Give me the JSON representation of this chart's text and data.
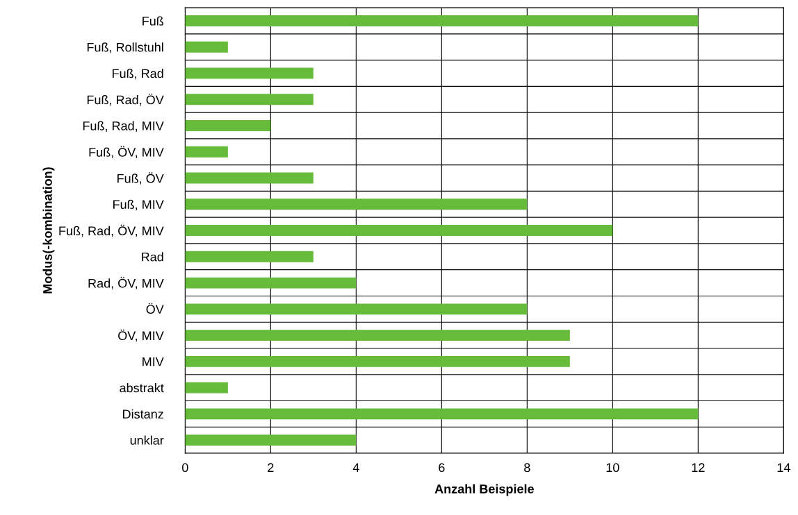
{
  "chart_data": {
    "type": "bar",
    "orientation": "horizontal",
    "xlabel": "Anzahl Beispiele",
    "ylabel": "Modus(-kombination)",
    "categories": [
      "Fuß",
      "Fuß, Rollstuhl",
      "Fuß, Rad",
      "Fuß, Rad, ÖV",
      "Fuß, Rad, MIV",
      "Fuß, ÖV, MIV",
      "Fuß, ÖV",
      "Fuß, MIV",
      "Fuß, Rad, ÖV, MIV",
      "Rad",
      "Rad, ÖV, MIV",
      "ÖV",
      "ÖV, MIV",
      "MIV",
      "abstrakt",
      "Distanz",
      "unklar"
    ],
    "values": [
      12,
      1,
      3,
      3,
      2,
      1,
      3,
      8,
      10,
      3,
      4,
      8,
      9,
      9,
      1,
      12,
      4
    ],
    "color": "#66bb3a",
    "xlim": [
      0,
      14
    ],
    "xticks": [
      0,
      2,
      4,
      6,
      8,
      10,
      12,
      14
    ],
    "grid": true,
    "legend": false
  }
}
